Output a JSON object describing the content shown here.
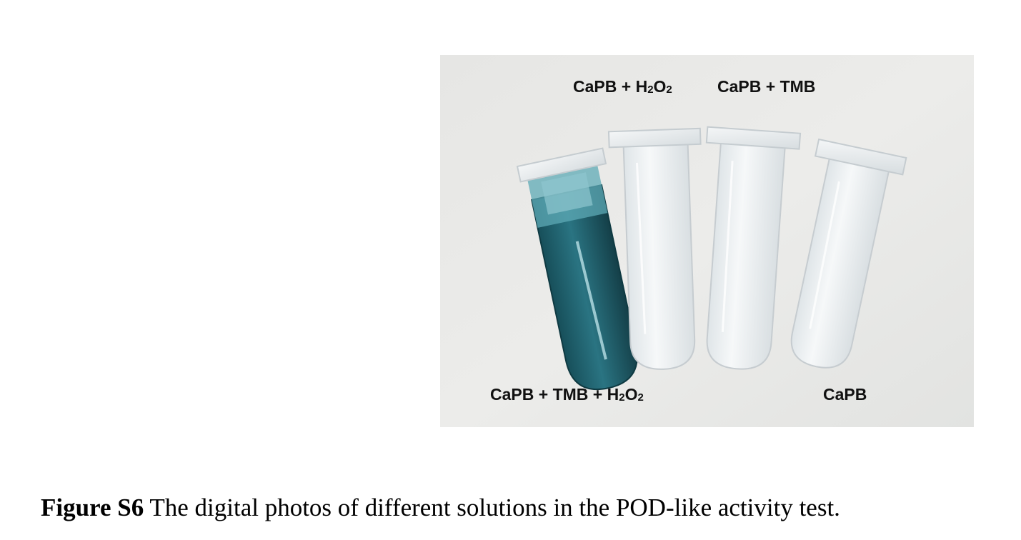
{
  "figure": {
    "labels": {
      "capb_h2o2": {
        "prefix": "CaPB + H",
        "sub1": "2",
        "mid": "O",
        "sub2": "2"
      },
      "capb_tmb": "CaPB + TMB",
      "capb_tmb_h2o2": {
        "prefix": "CaPB + TMB + H",
        "sub1": "2",
        "mid": "O",
        "sub2": "2"
      },
      "capb": "CaPB"
    },
    "colors": {
      "background": "#e8e8e6",
      "blue_solution": "#1f6a78",
      "clear_tube": "#eef2f4"
    }
  },
  "caption": {
    "label": "Figure S6",
    "text": " The digital photos of different solutions in the POD-like activity test."
  }
}
